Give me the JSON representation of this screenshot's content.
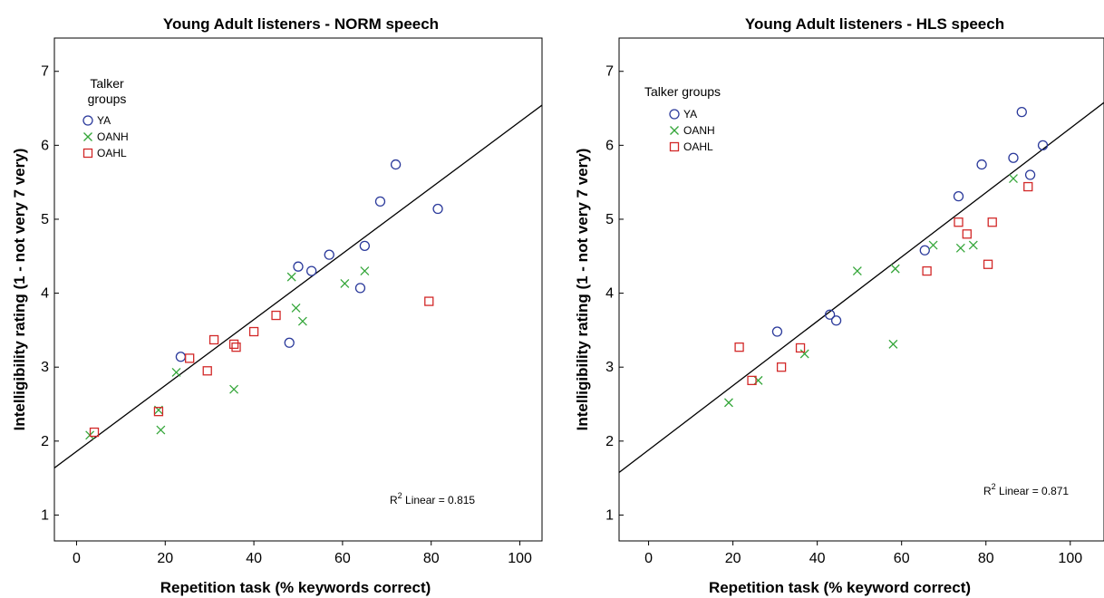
{
  "chart_data": [
    {
      "type": "scatter",
      "title": "Young Adult listeners - NORM speech",
      "xlabel": "Repetition task (% keywords correct)",
      "ylabel": "Intelligibility rating (1 - not very 7 very)",
      "xlim": [
        -5,
        105
      ],
      "ylim": [
        0.65,
        7.45
      ],
      "xticks": [
        "0",
        "20",
        "40",
        "60",
        "80",
        "100"
      ],
      "yticks": [
        "1",
        "2",
        "3",
        "4",
        "5",
        "6",
        "7"
      ],
      "grid": false,
      "legend": {
        "title": [
          "Talker",
          "groups"
        ],
        "placement": "top-left",
        "entries": [
          "YA",
          "OANH",
          "OAHL"
        ]
      },
      "series": [
        {
          "name": "YA",
          "marker": "circle",
          "color": "#2b3a9b",
          "points": [
            [
              23.5,
              3.14
            ],
            [
              48,
              3.33
            ],
            [
              50,
              4.36
            ],
            [
              53,
              4.3
            ],
            [
              57,
              4.52
            ],
            [
              64,
              4.07
            ],
            [
              65,
              4.64
            ],
            [
              68.5,
              5.24
            ],
            [
              72,
              5.74
            ],
            [
              81.5,
              5.14
            ]
          ]
        },
        {
          "name": "OANH",
          "marker": "x",
          "color": "#35a63a",
          "points": [
            [
              3,
              2.08
            ],
            [
              18.5,
              2.42
            ],
            [
              19,
              2.15
            ],
            [
              22.5,
              2.93
            ],
            [
              35.5,
              2.7
            ],
            [
              48.5,
              4.22
            ],
            [
              49.5,
              3.8
            ],
            [
              51,
              3.62
            ],
            [
              60.5,
              4.13
            ],
            [
              65,
              4.3
            ]
          ]
        },
        {
          "name": "OAHL",
          "marker": "square",
          "color": "#d22828",
          "points": [
            [
              4,
              2.12
            ],
            [
              18.5,
              2.4
            ],
            [
              25.5,
              3.12
            ],
            [
              29.5,
              2.95
            ],
            [
              31,
              3.37
            ],
            [
              35.5,
              3.31
            ],
            [
              36,
              3.27
            ],
            [
              40,
              3.48
            ],
            [
              45,
              3.7
            ],
            [
              79.5,
              3.89
            ]
          ]
        }
      ],
      "fit_line": {
        "slope": 0.0446,
        "intercept": 1.86
      },
      "annotation": {
        "prefix": "R",
        "sup": "2",
        "text": " Linear = 0.815"
      }
    },
    {
      "type": "scatter",
      "title": "Young Adult listeners - HLS speech",
      "xlabel": "Repetition task (% keyword correct)",
      "ylabel": "Intelligibility rating (1 - not very 7 very)",
      "xlim": [
        -7,
        108
      ],
      "ylim": [
        0.65,
        7.45
      ],
      "xticks": [
        "0",
        "20",
        "40",
        "60",
        "80",
        "100"
      ],
      "yticks": [
        "1",
        "2",
        "3",
        "4",
        "5",
        "6",
        "7"
      ],
      "grid": false,
      "legend": {
        "title": [
          "Talker groups"
        ],
        "placement": "top-left",
        "entries": [
          "YA",
          "OANH",
          "OAHL"
        ]
      },
      "series": [
        {
          "name": "YA",
          "marker": "circle",
          "color": "#2b3a9b",
          "points": [
            [
              30.5,
              3.48
            ],
            [
              43,
              3.71
            ],
            [
              44.5,
              3.63
            ],
            [
              65.5,
              4.58
            ],
            [
              73.5,
              5.31
            ],
            [
              79,
              5.74
            ],
            [
              86.5,
              5.83
            ],
            [
              88.5,
              6.45
            ],
            [
              90.5,
              5.6
            ],
            [
              93.5,
              6.0
            ]
          ]
        },
        {
          "name": "OANH",
          "marker": "x",
          "color": "#35a63a",
          "points": [
            [
              19,
              2.52
            ],
            [
              26,
              2.82
            ],
            [
              37,
              3.18
            ],
            [
              49.5,
              4.3
            ],
            [
              58,
              3.31
            ],
            [
              58.5,
              4.33
            ],
            [
              67.5,
              4.65
            ],
            [
              74,
              4.61
            ],
            [
              77,
              4.65
            ],
            [
              86.5,
              5.55
            ]
          ]
        },
        {
          "name": "OAHL",
          "marker": "square",
          "color": "#d22828",
          "points": [
            [
              21.5,
              3.27
            ],
            [
              24.5,
              2.82
            ],
            [
              31.5,
              3.0
            ],
            [
              36,
              3.26
            ],
            [
              66,
              4.3
            ],
            [
              73.5,
              4.96
            ],
            [
              75.5,
              4.8
            ],
            [
              80.5,
              4.39
            ],
            [
              81.5,
              4.96
            ],
            [
              90,
              5.44
            ]
          ]
        }
      ],
      "fit_line": {
        "slope": 0.0435,
        "intercept": 1.88
      },
      "annotation": {
        "prefix": "R",
        "sup": "2",
        "text": " Linear = 0.871"
      }
    }
  ]
}
